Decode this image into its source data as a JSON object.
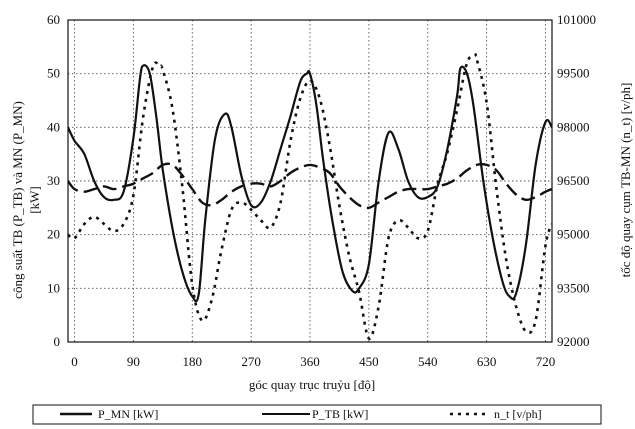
{
  "chart_data": {
    "type": "line",
    "xlabel": "góc quay trục truỷu [độ]",
    "ylabel_left": [
      "công suất TB (P_TB) và MN (P_MN)",
      "[kW]"
    ],
    "ylabel_right": "tốc độ quay cụm TB-MN (n_t) [v/ph]",
    "x_ticks": [
      0,
      90,
      180,
      270,
      360,
      450,
      540,
      630,
      720
    ],
    "xlim": [
      -10,
      730
    ],
    "y_left_ticks": [
      0,
      10,
      20,
      30,
      40,
      50,
      60
    ],
    "ylim_left": [
      0,
      60
    ],
    "y_right_ticks": [
      92000,
      93500,
      95000,
      96500,
      98000,
      99500,
      101000
    ],
    "ylim_right": [
      92000,
      101000
    ],
    "grid": true,
    "legend_position": "bottom",
    "series": [
      {
        "name": "P_MN [kW]",
        "axis": "left",
        "style": "long-dash",
        "x": [
          -10,
          0,
          15,
          30,
          45,
          60,
          75,
          90,
          105,
          120,
          135,
          150,
          165,
          180,
          195,
          210,
          225,
          240,
          255,
          270,
          285,
          300,
          315,
          330,
          345,
          360,
          375,
          390,
          405,
          420,
          435,
          450,
          465,
          480,
          495,
          510,
          525,
          540,
          555,
          570,
          585,
          600,
          615,
          630,
          645,
          660,
          675,
          690,
          705,
          720,
          730
        ],
        "values": [
          30,
          28.5,
          28,
          28.5,
          29,
          28.5,
          29,
          29.5,
          30.5,
          31.5,
          33,
          33,
          31,
          28.5,
          26,
          25.5,
          26.5,
          28,
          29,
          29.5,
          29.5,
          29,
          30,
          31.5,
          32.5,
          33,
          32.5,
          31.5,
          29,
          27,
          25.5,
          25,
          26,
          27,
          28,
          28.5,
          28.5,
          28.5,
          29,
          29.5,
          30.5,
          32,
          33,
          33,
          32,
          29.5,
          27.5,
          26.5,
          27,
          28,
          28.5
        ]
      },
      {
        "name": "P_TB [kW]",
        "axis": "left",
        "style": "solid",
        "x": [
          -10,
          0,
          15,
          30,
          45,
          60,
          75,
          90,
          100,
          105,
          115,
          125,
          135,
          150,
          165,
          180,
          190,
          200,
          215,
          230,
          240,
          255,
          270,
          285,
          300,
          315,
          330,
          345,
          355,
          360,
          370,
          380,
          395,
          410,
          425,
          435,
          450,
          465,
          480,
          495,
          510,
          525,
          540,
          555,
          570,
          585,
          590,
          600,
          610,
          625,
          640,
          655,
          665,
          675,
          690,
          705,
          720,
          730
        ],
        "values": [
          40,
          37.5,
          35,
          30,
          27,
          26.5,
          28,
          38,
          49,
          51.5,
          50,
          42,
          32,
          21,
          13,
          8.5,
          9,
          23,
          38,
          42.5,
          40,
          31,
          25.5,
          26,
          30,
          36,
          42,
          48.5,
          50,
          50,
          44,
          34,
          22,
          13,
          9.5,
          10,
          14.5,
          30,
          39,
          36,
          30,
          27,
          27,
          29,
          36,
          46,
          51,
          50,
          44,
          30,
          19,
          11,
          8.5,
          9,
          18,
          33,
          41,
          40
        ]
      },
      {
        "name": "n_t [v/ph]",
        "axis": "right",
        "style": "dotted",
        "x": [
          -10,
          0,
          15,
          30,
          45,
          60,
          75,
          90,
          105,
          120,
          130,
          135,
          150,
          165,
          180,
          195,
          210,
          225,
          240,
          255,
          270,
          285,
          300,
          315,
          330,
          345,
          360,
          375,
          390,
          405,
          420,
          435,
          450,
          465,
          480,
          495,
          510,
          525,
          540,
          555,
          570,
          585,
          600,
          612,
          615,
          630,
          645,
          660,
          675,
          690,
          705,
          720,
          730
        ],
        "values": [
          95000,
          94900,
          95300,
          95500,
          95300,
          95100,
          95300,
          96100,
          98300,
          99700,
          99700,
          99600,
          98500,
          96300,
          93600,
          92600,
          93200,
          94600,
          95700,
          95900,
          95700,
          95400,
          95200,
          95900,
          97600,
          98800,
          99300,
          98800,
          97500,
          95800,
          94400,
          93400,
          92100,
          93000,
          94900,
          95400,
          95200,
          94900,
          95100,
          96400,
          97300,
          98500,
          99800,
          100000,
          99900,
          98700,
          96300,
          94300,
          93000,
          92300,
          92600,
          94700,
          95300
        ]
      }
    ]
  }
}
